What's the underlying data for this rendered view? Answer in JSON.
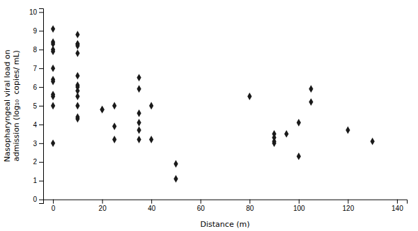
{
  "chart_data": {
    "type": "scatter",
    "xlabel": "Distance (m)",
    "ylabel": "Nasopharyngeal viral load on\nadmission (log₁₀  copies/ mL)",
    "x": [
      0,
      0,
      0,
      0,
      0,
      0,
      0,
      0,
      0,
      0,
      0,
      0,
      10,
      10,
      10,
      10,
      10,
      10,
      10,
      10,
      10,
      10,
      10,
      10,
      10,
      20,
      20,
      25,
      25,
      25,
      35,
      35,
      35,
      35,
      35,
      35,
      40,
      40,
      50,
      50,
      80,
      90,
      90,
      90,
      90,
      95,
      100,
      100,
      105,
      105,
      120,
      130
    ],
    "y": [
      9.1,
      8.4,
      8.3,
      8.0,
      7.9,
      7.0,
      6.4,
      6.3,
      5.6,
      5.5,
      5.0,
      3.0,
      8.8,
      8.3,
      8.3,
      8.2,
      7.8,
      6.6,
      6.1,
      6.0,
      5.8,
      5.5,
      5.0,
      4.4,
      4.3,
      4.8,
      4.8,
      5.0,
      3.9,
      3.2,
      6.5,
      5.9,
      4.6,
      4.1,
      3.7,
      3.2,
      5.0,
      3.2,
      1.9,
      1.1,
      5.5,
      3.5,
      3.3,
      3.1,
      3.0,
      3.5,
      4.1,
      2.3,
      5.9,
      5.2,
      3.7,
      3.1
    ],
    "color": "#1a1a1a",
    "marker": "diamond",
    "xlim": [
      -4,
      144
    ],
    "ylim": [
      -0.2,
      10.2
    ],
    "xticks": [
      0,
      20,
      40,
      60,
      80,
      100,
      120,
      140
    ],
    "yticks": [
      0,
      1,
      2,
      3,
      4,
      5,
      6,
      7,
      8,
      9,
      10
    ],
    "grid": false
  }
}
